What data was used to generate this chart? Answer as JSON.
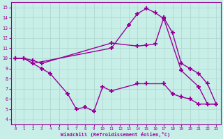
{
  "background_color": "#c8eee8",
  "grid_color": "#b0d8d0",
  "line_color": "#990099",
  "marker": "+",
  "markersize": 5,
  "markeredgewidth": 1.5,
  "linewidth": 1.0,
  "xlabel": "Windchill (Refroidissement éolien,°C)",
  "xlabel_color": "#990099",
  "xlim": [
    -0.5,
    23.5
  ],
  "ylim": [
    3.5,
    15.5
  ],
  "xticks": [
    0,
    1,
    2,
    3,
    4,
    5,
    6,
    7,
    8,
    9,
    10,
    11,
    12,
    13,
    14,
    15,
    16,
    17,
    18,
    19,
    20,
    21,
    22,
    23
  ],
  "yticks": [
    4,
    5,
    6,
    7,
    8,
    9,
    10,
    11,
    12,
    13,
    14,
    15
  ],
  "lines": [
    {
      "x": [
        0,
        1,
        2,
        11,
        13,
        14,
        15,
        16,
        17,
        19,
        21,
        22,
        23
      ],
      "y": [
        10,
        10,
        9.5,
        11,
        13.3,
        14.4,
        14.9,
        14.5,
        13.9,
        8.8,
        7.2,
        5.5,
        5.5
      ]
    },
    {
      "x": [
        0,
        1,
        2,
        3,
        11,
        14,
        15,
        16,
        17,
        18,
        19,
        20,
        21,
        22,
        23
      ],
      "y": [
        10,
        10,
        9.8,
        9.5,
        11.5,
        11.2,
        11.3,
        11.4,
        14.0,
        12.5,
        9.5,
        9.0,
        8.5,
        7.5,
        5.5
      ]
    },
    {
      "x": [
        0,
        1,
        2,
        3,
        4,
        6,
        7,
        8,
        9,
        10,
        11,
        14,
        15,
        17,
        18,
        19,
        20,
        21,
        22,
        23
      ],
      "y": [
        10,
        10,
        9.5,
        9.0,
        8.5,
        6.5,
        5.0,
        5.2,
        4.8,
        7.2,
        6.8,
        7.5,
        7.5,
        7.5,
        6.5,
        6.2,
        6.0,
        5.5,
        5.5,
        5.5
      ]
    }
  ]
}
